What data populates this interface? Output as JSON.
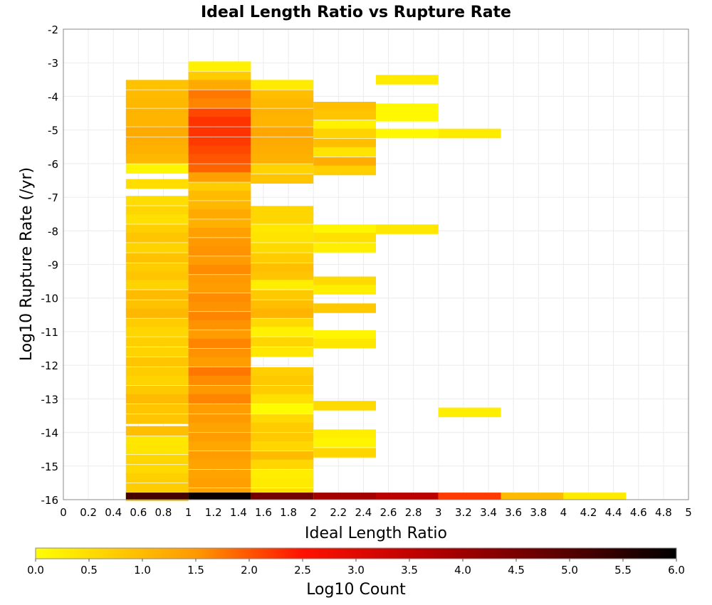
{
  "chart_data": {
    "type": "heatmap",
    "title": "Ideal Length Ratio vs Rupture Rate",
    "xlabel": "Ideal Length Ratio",
    "ylabel": "Log10 Rupture Rate (/yr)",
    "xlim": [
      0,
      5
    ],
    "ylim": [
      -16,
      -2
    ],
    "x_ticks": [
      "0",
      "0.2",
      "0.4",
      "0.6",
      "0.8",
      "1",
      "1.2",
      "1.4",
      "1.6",
      "1.8",
      "2",
      "2.2",
      "2.4",
      "2.6",
      "2.8",
      "3",
      "3.2",
      "3.4",
      "3.6",
      "3.8",
      "4",
      "4.2",
      "4.4",
      "4.6",
      "4.8",
      "5"
    ],
    "y_ticks": [
      "-2",
      "-3",
      "-4",
      "-5",
      "-6",
      "-7",
      "-8",
      "-9",
      "-10",
      "-11",
      "-12",
      "-13",
      "-14",
      "-15",
      "-16"
    ],
    "grid": true,
    "bin_width_x": 0.5,
    "bin_height_y": 0.28,
    "colorbar": {
      "label": "Log10 Count",
      "range": [
        0.0,
        6.0
      ],
      "ticks": [
        "0.0",
        "0.5",
        "1.0",
        "1.5",
        "2.0",
        "2.5",
        "3.0",
        "3.5",
        "4.0",
        "4.5",
        "5.0",
        "5.5",
        "6.0"
      ],
      "stops": [
        {
          "v": 0.0,
          "color": "#ffff00"
        },
        {
          "v": 1.5,
          "color": "#ff9900"
        },
        {
          "v": 2.5,
          "color": "#ff1100"
        },
        {
          "v": 3.6,
          "color": "#bb0000"
        },
        {
          "v": 5.0,
          "color": "#550000"
        },
        {
          "v": 6.0,
          "color": "#000000"
        }
      ]
    },
    "columns": [
      {
        "x": 0.5,
        "cells": [
          [
            -3.65,
            0.9
          ],
          [
            -3.95,
            1.0
          ],
          [
            -4.2,
            1.05
          ],
          [
            -4.5,
            1.1
          ],
          [
            -4.75,
            1.1
          ],
          [
            -5.05,
            1.25
          ],
          [
            -5.35,
            1.2
          ],
          [
            -5.6,
            1.15
          ],
          [
            -5.85,
            1.05
          ],
          [
            -6.15,
            0.15
          ],
          [
            -6.6,
            0.5
          ],
          [
            -7.1,
            0.5
          ],
          [
            -7.4,
            0.6
          ],
          [
            -7.65,
            0.45
          ],
          [
            -7.95,
            0.7
          ],
          [
            -8.2,
            0.85
          ],
          [
            -8.5,
            0.65
          ],
          [
            -8.8,
            0.9
          ],
          [
            -9.1,
            0.75
          ],
          [
            -9.35,
            0.85
          ],
          [
            -9.6,
            0.65
          ],
          [
            -9.9,
            1.0
          ],
          [
            -10.2,
            0.9
          ],
          [
            -10.45,
            1.05
          ],
          [
            -10.75,
            0.75
          ],
          [
            -11.0,
            0.6
          ],
          [
            -11.3,
            0.7
          ],
          [
            -11.6,
            0.65
          ],
          [
            -11.9,
            0.85
          ],
          [
            -12.2,
            0.75
          ],
          [
            -12.45,
            0.65
          ],
          [
            -12.75,
            0.8
          ],
          [
            -13.0,
            1.0
          ],
          [
            -13.3,
            0.85
          ],
          [
            -13.6,
            0.85
          ],
          [
            -13.95,
            0.95
          ],
          [
            -14.25,
            0.35
          ],
          [
            -14.5,
            0.4
          ],
          [
            -14.8,
            0.6
          ],
          [
            -15.1,
            0.55
          ],
          [
            -15.35,
            0.7
          ],
          [
            -15.65,
            0.75
          ],
          [
            -15.9,
            0.6
          ]
        ]
      },
      {
        "x": 1.0,
        "cells": [
          [
            -3.1,
            0.2
          ],
          [
            -3.4,
            0.75
          ],
          [
            -3.65,
            1.25
          ],
          [
            -3.95,
            1.75
          ],
          [
            -4.2,
            1.65
          ],
          [
            -4.5,
            2.1
          ],
          [
            -4.75,
            2.25
          ],
          [
            -5.05,
            2.25
          ],
          [
            -5.35,
            2.2
          ],
          [
            -5.6,
            2.1
          ],
          [
            -5.85,
            2.0
          ],
          [
            -6.15,
            1.9
          ],
          [
            -6.4,
            1.4
          ],
          [
            -6.7,
            0.75
          ],
          [
            -6.95,
            1.0
          ],
          [
            -7.25,
            1.05
          ],
          [
            -7.5,
            1.25
          ],
          [
            -7.8,
            1.15
          ],
          [
            -8.05,
            1.4
          ],
          [
            -8.35,
            1.5
          ],
          [
            -8.6,
            1.55
          ],
          [
            -8.9,
            1.45
          ],
          [
            -9.15,
            1.6
          ],
          [
            -9.45,
            1.5
          ],
          [
            -9.7,
            1.45
          ],
          [
            -10.0,
            1.6
          ],
          [
            -10.25,
            1.55
          ],
          [
            -10.55,
            1.65
          ],
          [
            -10.8,
            1.55
          ],
          [
            -11.1,
            1.45
          ],
          [
            -11.35,
            1.65
          ],
          [
            -11.65,
            1.55
          ],
          [
            -11.9,
            1.45
          ],
          [
            -12.2,
            1.75
          ],
          [
            -12.45,
            1.6
          ],
          [
            -12.75,
            1.5
          ],
          [
            -13.0,
            1.65
          ],
          [
            -13.3,
            1.45
          ],
          [
            -13.6,
            1.5
          ],
          [
            -13.85,
            1.35
          ],
          [
            -14.15,
            1.45
          ],
          [
            -14.4,
            1.3
          ],
          [
            -14.7,
            1.45
          ],
          [
            -14.95,
            1.35
          ],
          [
            -15.25,
            1.35
          ],
          [
            -15.5,
            1.4
          ],
          [
            -15.8,
            1.35
          ]
        ]
      },
      {
        "x": 1.5,
        "cells": [
          [
            -3.65,
            0.3
          ],
          [
            -3.95,
            0.95
          ],
          [
            -4.2,
            1.05
          ],
          [
            -4.5,
            1.15
          ],
          [
            -4.75,
            1.1
          ],
          [
            -5.05,
            1.3
          ],
          [
            -5.35,
            1.25
          ],
          [
            -5.6,
            1.2
          ],
          [
            -5.85,
            1.15
          ],
          [
            -6.15,
            0.65
          ],
          [
            -6.45,
            0.85
          ],
          [
            -7.4,
            0.6
          ],
          [
            -7.65,
            0.6
          ],
          [
            -7.95,
            0.35
          ],
          [
            -8.2,
            0.4
          ],
          [
            -8.5,
            0.55
          ],
          [
            -8.8,
            0.75
          ],
          [
            -9.1,
            0.95
          ],
          [
            -9.35,
            0.85
          ],
          [
            -9.6,
            0.25
          ],
          [
            -9.9,
            0.8
          ],
          [
            -10.2,
            0.95
          ],
          [
            -10.45,
            1.1
          ],
          [
            -10.75,
            0.55
          ],
          [
            -11.0,
            0.2
          ],
          [
            -11.3,
            0.6
          ],
          [
            -11.6,
            0.35
          ],
          [
            -12.2,
            0.7
          ],
          [
            -12.45,
            0.8
          ],
          [
            -12.75,
            0.75
          ],
          [
            -13.0,
            0.45
          ],
          [
            -13.3,
            0.05
          ],
          [
            -13.6,
            0.55
          ],
          [
            -13.85,
            0.75
          ],
          [
            -14.15,
            0.8
          ],
          [
            -14.4,
            0.6
          ],
          [
            -14.7,
            1.0
          ],
          [
            -14.95,
            0.6
          ],
          [
            -15.25,
            0.25
          ],
          [
            -15.5,
            0.3
          ],
          [
            -15.8,
            0.45
          ]
        ]
      },
      {
        "x": 2.0,
        "cells": [
          [
            -4.3,
            0.95
          ],
          [
            -4.55,
            0.85
          ],
          [
            -4.85,
            0.2
          ],
          [
            -5.1,
            0.65
          ],
          [
            -5.4,
            0.95
          ],
          [
            -5.65,
            0.4
          ],
          [
            -5.95,
            1.2
          ],
          [
            -6.2,
            0.7
          ],
          [
            -7.95,
            0.15
          ],
          [
            -8.2,
            0.45
          ],
          [
            -8.5,
            0.25
          ],
          [
            -9.5,
            0.55
          ],
          [
            -9.75,
            0.25
          ],
          [
            -10.3,
            0.8
          ],
          [
            -11.1,
            0.15
          ],
          [
            -11.35,
            0.35
          ],
          [
            -13.2,
            0.55
          ],
          [
            -14.05,
            0.25
          ],
          [
            -14.3,
            0.15
          ],
          [
            -14.6,
            0.6
          ]
        ]
      },
      {
        "x": 2.5,
        "cells": [
          [
            -3.5,
            0.3
          ],
          [
            -4.35,
            0.1
          ],
          [
            -4.6,
            0.1
          ],
          [
            -5.1,
            0.1
          ],
          [
            -7.95,
            0.35
          ]
        ]
      },
      {
        "x": 3.0,
        "cells": [
          [
            -5.1,
            0.3
          ],
          [
            -13.4,
            0.25
          ]
        ]
      }
    ],
    "bottom_row": {
      "y": -15.93,
      "values": [
        {
          "x": 0.5,
          "v": 5.2
        },
        {
          "x": 1.0,
          "v": 5.9
        },
        {
          "x": 1.5,
          "v": 4.6
        },
        {
          "x": 2.0,
          "v": 3.9
        },
        {
          "x": 2.5,
          "v": 3.6
        },
        {
          "x": 3.0,
          "v": 2.2
        },
        {
          "x": 3.5,
          "v": 1.0
        },
        {
          "x": 4.0,
          "v": 0.3
        }
      ]
    }
  }
}
